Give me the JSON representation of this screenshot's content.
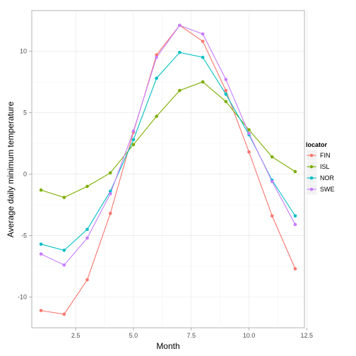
{
  "chart_data": {
    "type": "line",
    "title": "",
    "xlabel": "Month",
    "ylabel": "Average daily minimum temperature",
    "xlim": [
      0.6,
      12.4
    ],
    "ylim": [
      -12.5,
      13.3
    ],
    "x": [
      1,
      2,
      3,
      4,
      5,
      6,
      7,
      8,
      9,
      10,
      11,
      12
    ],
    "x_ticks": [
      {
        "value": 2.5,
        "label": "2.5"
      },
      {
        "value": 5.0,
        "label": "5.0"
      },
      {
        "value": 7.5,
        "label": "7.5"
      },
      {
        "value": 10.0,
        "label": "10.0"
      },
      {
        "value": 12.5,
        "label": "12.5"
      }
    ],
    "y_ticks": [
      {
        "value": -10,
        "label": "-10"
      },
      {
        "value": -5,
        "label": "-5"
      },
      {
        "value": 0,
        "label": "0"
      },
      {
        "value": 5,
        "label": "5"
      },
      {
        "value": 10,
        "label": "10"
      }
    ],
    "grid": true,
    "legend": {
      "title": "locator",
      "position": "right"
    },
    "series": [
      {
        "name": "FIN",
        "color": "#F8766D",
        "values": [
          -11.1,
          -11.4,
          -8.6,
          -3.2,
          3.4,
          9.7,
          12.1,
          10.8,
          6.8,
          1.8,
          -3.4,
          -7.7
        ]
      },
      {
        "name": "ISL",
        "color": "#7CAE00",
        "values": [
          -1.3,
          -1.9,
          -1.0,
          0.1,
          2.4,
          4.7,
          6.8,
          7.5,
          5.9,
          3.6,
          1.4,
          0.2
        ]
      },
      {
        "name": "NOR",
        "color": "#00BFC4",
        "values": [
          -5.7,
          -6.2,
          -4.5,
          -1.4,
          2.8,
          7.8,
          9.9,
          9.5,
          6.5,
          3.2,
          -0.5,
          -3.4
        ]
      },
      {
        "name": "SWE",
        "color": "#C77CFF",
        "values": [
          -6.5,
          -7.4,
          -5.2,
          -1.6,
          3.5,
          9.5,
          12.1,
          11.4,
          7.7,
          3.3,
          -0.6,
          -4.1
        ]
      }
    ]
  }
}
